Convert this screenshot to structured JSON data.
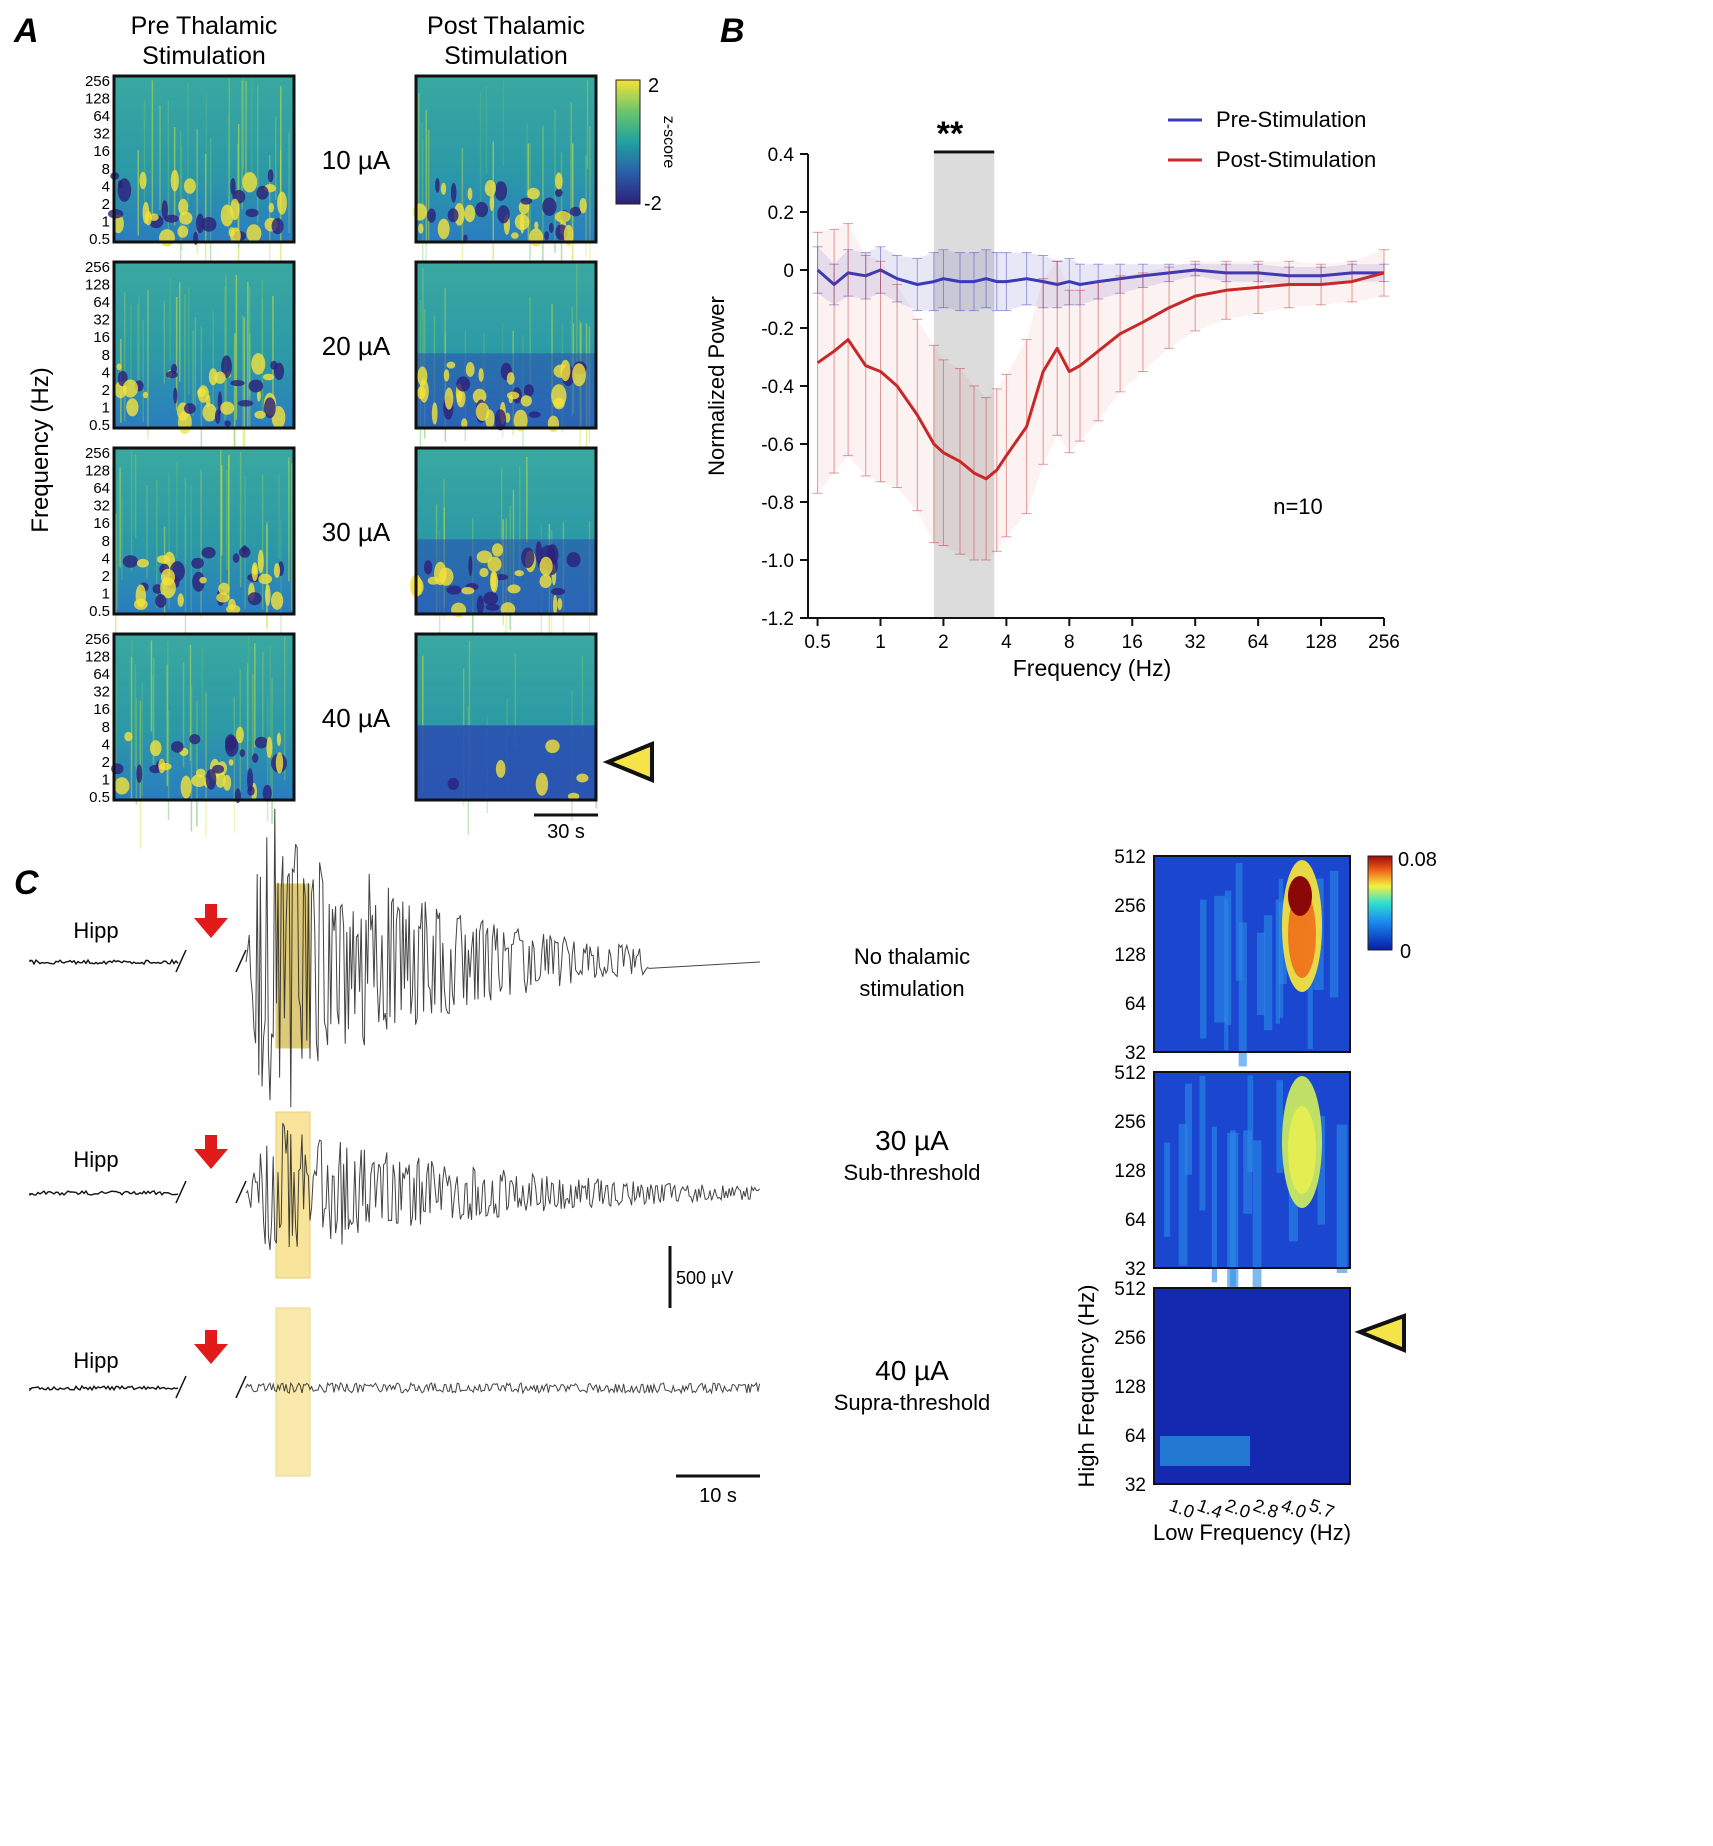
{
  "panel_labels": {
    "a": "A",
    "b": "B",
    "c": "C"
  },
  "colors": {
    "pre": "#3a3ab8",
    "post": "#c82828",
    "sig_band": "#dcdcdc",
    "viridis_low": "#2a2d8c",
    "viridis_mid": "#1fa2a0",
    "viridis_high": "#f5e23a",
    "arrow_red": "#e11a1a",
    "highlight": "#f7e08a"
  },
  "panelA": {
    "col_headers": [
      {
        "line1": "Pre Thalamic",
        "line2": "Stimulation"
      },
      {
        "line1": "Post Thalamic",
        "line2": "Stimulation"
      }
    ],
    "rows": [
      "10 µA",
      "20 µA",
      "30 µA",
      "40 µA"
    ],
    "y_ticks": [
      "256",
      "128",
      "64",
      "32",
      "16",
      "8",
      "4",
      "2",
      "1",
      "0.5"
    ],
    "ylabel": "Frequency (Hz)",
    "colorbar": {
      "max": "2",
      "min": "-2",
      "label": "z-score"
    },
    "scalebar": "30 s"
  },
  "panelC": {
    "traces": [
      {
        "channel": "Hipp",
        "title": "No thalamic",
        "subtitle": "stimulation"
      },
      {
        "channel": "Hipp",
        "title": "30 µA",
        "subtitle": "Sub-threshold"
      },
      {
        "channel": "Hipp",
        "title": "40 µA",
        "subtitle": "Supra-threshold"
      }
    ],
    "scalebar_v": "500 µV",
    "scalebar_h": "10 s",
    "pac": {
      "y_ticks": [
        "512",
        "256",
        "128",
        "64",
        "32"
      ],
      "x_ticks": [
        "1.0",
        "1.4",
        "2.0",
        "2.8",
        "4.0",
        "5.7"
      ],
      "xlabel": "Low Frequency (Hz)",
      "ylabel": "High Frequency (Hz)",
      "colorbar": {
        "max": "0.08",
        "min": "0"
      }
    }
  },
  "chart_data": {
    "type": "line",
    "title": "",
    "xlabel": "Frequency (Hz)",
    "ylabel": "Normalized Power",
    "x_scale": "log2",
    "x_ticks": [
      "0.5",
      "1",
      "2",
      "4",
      "8",
      "16",
      "32",
      "64",
      "128",
      "256"
    ],
    "y_ticks": [
      "0.4",
      "0.2",
      "0",
      "-0.2",
      "-0.4",
      "-0.6",
      "-0.8",
      "-1.0",
      "-1.2"
    ],
    "xlim": [
      0.45,
      256
    ],
    "ylim": [
      -1.2,
      0.4
    ],
    "x": [
      0.5,
      0.6,
      0.7,
      0.85,
      1.0,
      1.2,
      1.5,
      1.8,
      2.0,
      2.4,
      2.8,
      3.2,
      3.6,
      4.0,
      5.0,
      6.0,
      7.0,
      8.0,
      9.0,
      11.0,
      14.0,
      18.0,
      24.0,
      32.0,
      45.0,
      64.0,
      90.0,
      128.0,
      180.0,
      256.0
    ],
    "series": [
      {
        "name": "Pre-Stimulation",
        "color": "#3a3ab8",
        "values": [
          0.0,
          -0.05,
          -0.01,
          -0.02,
          0.0,
          -0.03,
          -0.05,
          -0.04,
          -0.03,
          -0.04,
          -0.04,
          -0.03,
          -0.04,
          -0.04,
          -0.03,
          -0.04,
          -0.05,
          -0.04,
          -0.05,
          -0.04,
          -0.03,
          -0.02,
          -0.01,
          0.0,
          -0.01,
          -0.01,
          -0.02,
          -0.02,
          -0.01,
          -0.01
        ],
        "error": [
          0.08,
          0.07,
          0.08,
          0.08,
          0.08,
          0.08,
          0.09,
          0.1,
          0.1,
          0.1,
          0.1,
          0.1,
          0.1,
          0.1,
          0.09,
          0.09,
          0.08,
          0.08,
          0.07,
          0.06,
          0.05,
          0.04,
          0.03,
          0.02,
          0.03,
          0.03,
          0.03,
          0.03,
          0.03,
          0.03
        ]
      },
      {
        "name": "Post-Stimulation",
        "color": "#c82828",
        "values": [
          -0.32,
          -0.28,
          -0.24,
          -0.33,
          -0.35,
          -0.4,
          -0.5,
          -0.6,
          -0.63,
          -0.66,
          -0.7,
          -0.72,
          -0.69,
          -0.64,
          -0.54,
          -0.35,
          -0.27,
          -0.35,
          -0.33,
          -0.28,
          -0.22,
          -0.18,
          -0.13,
          -0.09,
          -0.07,
          -0.06,
          -0.05,
          -0.05,
          -0.04,
          -0.01
        ],
        "error": [
          0.45,
          0.42,
          0.4,
          0.38,
          0.38,
          0.35,
          0.33,
          0.34,
          0.32,
          0.32,
          0.3,
          0.28,
          0.28,
          0.28,
          0.3,
          0.32,
          0.3,
          0.28,
          0.26,
          0.24,
          0.2,
          0.17,
          0.14,
          0.12,
          0.1,
          0.09,
          0.08,
          0.07,
          0.07,
          0.08
        ]
      }
    ],
    "significance": {
      "x_range": [
        1.8,
        3.5
      ],
      "label": "**"
    },
    "legend": [
      "Pre-Stimulation",
      "Post-Stimulation"
    ],
    "legend_position": "top-right",
    "annotation": "n=10"
  }
}
